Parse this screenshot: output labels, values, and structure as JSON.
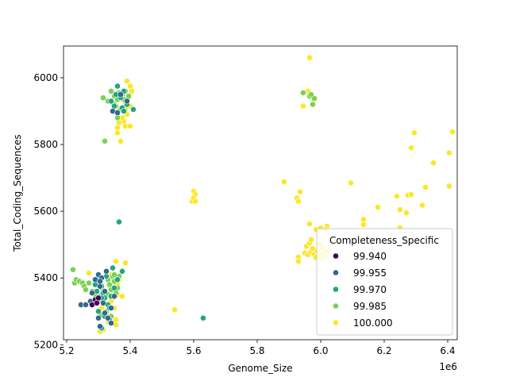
{
  "chart_data": {
    "type": "scatter",
    "title": "",
    "xlabel": "Genome_Size",
    "ylabel": "Total_Coding_Sequences",
    "x_offset_label": "1e6",
    "xlim": [
      5.19,
      6.43
    ],
    "ylim": [
      5215,
      6095
    ],
    "x_ticks": [
      5.2,
      5.4,
      5.6,
      5.8,
      6.0,
      6.2,
      6.4
    ],
    "x_tick_labels": [
      "5.2",
      "5.4",
      "5.6",
      "5.8",
      "6.0",
      "6.2",
      "6.4"
    ],
    "y_ticks": [
      5200,
      5400,
      5600,
      5800,
      6000
    ],
    "y_tick_labels": [
      "5200",
      "5400",
      "5600",
      "5800",
      "6000"
    ],
    "legend": {
      "title": "Completeness_Specific",
      "placement": "lower-right",
      "entries": [
        {
          "label": "99.940",
          "color": "#440154"
        },
        {
          "label": "99.955",
          "color": "#31688e"
        },
        {
          "label": "99.970",
          "color": "#21a585"
        },
        {
          "label": "99.985",
          "color": "#7ad151"
        },
        {
          "label": "100.000",
          "color": "#fde725"
        }
      ]
    },
    "series": [
      {
        "completeness": "100.000",
        "color": "#fde725",
        "points": [
          [
            5.36,
            5850
          ],
          [
            5.37,
            5810
          ],
          [
            5.38,
            5870
          ],
          [
            5.385,
            5855
          ],
          [
            5.39,
            5890
          ],
          [
            5.395,
            5940
          ],
          [
            5.4,
            5975
          ],
          [
            5.4,
            5915
          ],
          [
            5.405,
            5960
          ],
          [
            5.39,
            5990
          ],
          [
            5.38,
            5930
          ],
          [
            5.375,
            5880
          ],
          [
            5.365,
            5865
          ],
          [
            5.355,
            5900
          ],
          [
            5.37,
            5945
          ],
          [
            5.4,
            5855
          ],
          [
            5.385,
            5905
          ],
          [
            5.36,
            5835
          ],
          [
            5.27,
            5415
          ],
          [
            5.3,
            5330
          ],
          [
            5.31,
            5310
          ],
          [
            5.315,
            5245
          ],
          [
            5.325,
            5290
          ],
          [
            5.33,
            5270
          ],
          [
            5.335,
            5375
          ],
          [
            5.34,
            5330
          ],
          [
            5.345,
            5400
          ],
          [
            5.35,
            5310
          ],
          [
            5.355,
            5260
          ],
          [
            5.355,
            5275
          ],
          [
            5.36,
            5380
          ],
          [
            5.36,
            5350
          ],
          [
            5.365,
            5395
          ],
          [
            5.375,
            5345
          ],
          [
            5.385,
            5445
          ],
          [
            5.355,
            5450
          ],
          [
            5.32,
            5350
          ],
          [
            5.305,
            5240
          ],
          [
            5.34,
            5280
          ],
          [
            5.35,
            5360
          ],
          [
            5.34,
            5410
          ],
          [
            5.54,
            5305
          ],
          [
            5.595,
            5630
          ],
          [
            5.6,
            5660
          ],
          [
            5.605,
            5650
          ],
          [
            5.6,
            5640
          ],
          [
            5.605,
            5630
          ],
          [
            5.885,
            5688
          ],
          [
            5.925,
            5640
          ],
          [
            5.93,
            5630
          ],
          [
            5.935,
            5658
          ],
          [
            5.93,
            5462
          ],
          [
            5.93,
            5450
          ],
          [
            5.945,
            5915
          ],
          [
            5.96,
            5960
          ],
          [
            5.965,
            6060
          ],
          [
            5.975,
            5925
          ],
          [
            5.965,
            5562
          ],
          [
            5.985,
            5545
          ],
          [
            6.0,
            5550
          ],
          [
            6.02,
            5555
          ],
          [
            6.015,
            5545
          ],
          [
            5.95,
            5475
          ],
          [
            5.955,
            5495
          ],
          [
            5.96,
            5470
          ],
          [
            5.965,
            5505
          ],
          [
            5.97,
            5478
          ],
          [
            5.975,
            5488
          ],
          [
            5.98,
            5470
          ],
          [
            5.985,
            5462
          ],
          [
            5.99,
            5480
          ],
          [
            5.995,
            5500
          ],
          [
            6.0,
            5470
          ],
          [
            6.005,
            5490
          ],
          [
            6.01,
            5475
          ],
          [
            6.015,
            5465
          ],
          [
            6.02,
            5480
          ],
          [
            5.97,
            5515
          ],
          [
            6.0,
            5458
          ],
          [
            6.095,
            5685
          ],
          [
            6.135,
            5575
          ],
          [
            6.135,
            5560
          ],
          [
            6.18,
            5612
          ],
          [
            6.24,
            5645
          ],
          [
            6.25,
            5605
          ],
          [
            6.25,
            5550
          ],
          [
            6.27,
            5595
          ],
          [
            6.275,
            5648
          ],
          [
            6.285,
            5650
          ],
          [
            6.285,
            5790
          ],
          [
            6.295,
            5835
          ],
          [
            6.32,
            5618
          ],
          [
            6.33,
            5672
          ],
          [
            6.355,
            5745
          ],
          [
            6.405,
            5775
          ],
          [
            6.405,
            5675
          ],
          [
            6.415,
            5838
          ]
        ]
      },
      {
        "completeness": "99.985",
        "color": "#7ad151",
        "points": [
          [
            5.315,
            5940
          ],
          [
            5.32,
            5810
          ],
          [
            5.33,
            5930
          ],
          [
            5.34,
            5960
          ],
          [
            5.345,
            5925
          ],
          [
            5.35,
            5945
          ],
          [
            5.355,
            5915
          ],
          [
            5.36,
            5935
          ],
          [
            5.365,
            5955
          ],
          [
            5.37,
            5905
          ],
          [
            5.375,
            5950
          ],
          [
            5.385,
            5960
          ],
          [
            5.395,
            5945
          ],
          [
            5.36,
            5880
          ],
          [
            5.35,
            5920
          ],
          [
            5.38,
            5935
          ],
          [
            5.22,
            5425
          ],
          [
            5.225,
            5385
          ],
          [
            5.23,
            5395
          ],
          [
            5.24,
            5390
          ],
          [
            5.25,
            5385
          ],
          [
            5.255,
            5375
          ],
          [
            5.26,
            5365
          ],
          [
            5.27,
            5385
          ],
          [
            5.28,
            5360
          ],
          [
            5.29,
            5350
          ],
          [
            5.3,
            5330
          ],
          [
            5.305,
            5345
          ],
          [
            5.31,
            5370
          ],
          [
            5.32,
            5360
          ],
          [
            5.33,
            5395
          ],
          [
            5.335,
            5380
          ],
          [
            5.34,
            5365
          ],
          [
            5.345,
            5405
          ],
          [
            5.35,
            5390
          ],
          [
            5.355,
            5355
          ],
          [
            5.36,
            5370
          ],
          [
            5.365,
            5405
          ],
          [
            5.35,
            5410
          ],
          [
            5.33,
            5350
          ],
          [
            5.31,
            5290
          ],
          [
            5.325,
            5300
          ],
          [
            5.34,
            5285
          ],
          [
            5.945,
            5955
          ],
          [
            5.965,
            5945
          ],
          [
            5.975,
            5920
          ],
          [
            5.98,
            5938
          ],
          [
            5.97,
            5950
          ]
        ]
      },
      {
        "completeness": "99.970",
        "color": "#21a585",
        "points": [
          [
            5.34,
            5930
          ],
          [
            5.35,
            5915
          ],
          [
            5.36,
            5975
          ],
          [
            5.37,
            5940
          ],
          [
            5.375,
            5910
          ],
          [
            5.38,
            5900
          ],
          [
            5.39,
            5920
          ],
          [
            5.41,
            5905
          ],
          [
            5.355,
            5950
          ],
          [
            5.38,
            5960
          ],
          [
            5.365,
            5568
          ],
          [
            5.63,
            5280
          ],
          [
            5.29,
            5380
          ],
          [
            5.295,
            5360
          ],
          [
            5.3,
            5395
          ],
          [
            5.31,
            5375
          ],
          [
            5.315,
            5355
          ],
          [
            5.32,
            5340
          ],
          [
            5.325,
            5405
          ],
          [
            5.33,
            5320
          ],
          [
            5.335,
            5310
          ],
          [
            5.34,
            5345
          ],
          [
            5.345,
            5430
          ],
          [
            5.35,
            5370
          ],
          [
            5.36,
            5395
          ],
          [
            5.375,
            5420
          ],
          [
            5.3,
            5300
          ],
          [
            5.31,
            5250
          ],
          [
            5.32,
            5285
          ],
          [
            5.335,
            5275
          ],
          [
            5.31,
            5340
          ]
        ]
      },
      {
        "completeness": "99.955",
        "color": "#31688e",
        "points": [
          [
            5.345,
            5900
          ],
          [
            5.37,
            5950
          ],
          [
            5.39,
            5930
          ],
          [
            5.36,
            5895
          ],
          [
            5.245,
            5320
          ],
          [
            5.26,
            5320
          ],
          [
            5.275,
            5330
          ],
          [
            5.28,
            5355
          ],
          [
            5.29,
            5395
          ],
          [
            5.3,
            5410
          ],
          [
            5.305,
            5375
          ],
          [
            5.31,
            5400
          ],
          [
            5.32,
            5360
          ],
          [
            5.325,
            5420
          ],
          [
            5.33,
            5280
          ],
          [
            5.34,
            5265
          ],
          [
            5.35,
            5345
          ],
          [
            5.3,
            5280
          ],
          [
            5.305,
            5255
          ],
          [
            5.32,
            5295
          ],
          [
            5.34,
            5310
          ],
          [
            5.315,
            5325
          ],
          [
            5.305,
            5390
          ]
        ]
      },
      {
        "completeness": "99.940",
        "color": "#440154",
        "points": [
          [
            5.28,
            5320
          ],
          [
            5.29,
            5335
          ],
          [
            5.3,
            5340
          ],
          [
            5.295,
            5325
          ]
        ]
      }
    ]
  }
}
